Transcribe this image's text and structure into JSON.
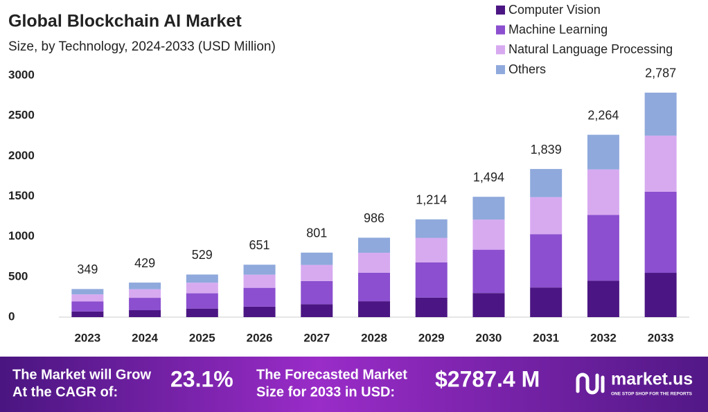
{
  "chart_data": {
    "type": "stacked_bar",
    "title": "Global Blockchain AI Market",
    "subtitle": "Size, by Technology, 2024-2033 (USD Million)",
    "categories": [
      "2023",
      "2024",
      "2025",
      "2026",
      "2027",
      "2028",
      "2029",
      "2030",
      "2031",
      "2032",
      "2033"
    ],
    "series": [
      {
        "name": "Computer Vision",
        "color": "#4b1683",
        "values": [
          70,
          86,
          106,
          130,
          160,
          197,
          243,
          299,
          368,
          453,
          550
        ]
      },
      {
        "name": "Machine Learning",
        "color": "#8b4fcf",
        "values": [
          126,
          154,
          190,
          234,
          288,
          355,
          437,
          538,
          662,
          815,
          1006
        ]
      },
      {
        "name": "Natural Language Processing",
        "color": "#d7aaf0",
        "values": [
          87,
          107,
          132,
          163,
          200,
          247,
          304,
          374,
          460,
          566,
          697
        ]
      },
      {
        "name": "Others",
        "color": "#8fa9dc",
        "values": [
          66,
          82,
          101,
          124,
          153,
          187,
          230,
          283,
          349,
          430,
          534
        ]
      }
    ],
    "totals": [
      349,
      429,
      529,
      651,
      801,
      986,
      1214,
      1494,
      1839,
      2264,
      2787
    ],
    "total_labels": [
      "349",
      "429",
      "529",
      "651",
      "801",
      "986",
      "1,214",
      "1,494",
      "1,839",
      "2,264",
      "2,787"
    ],
    "ylim": [
      0,
      3000
    ],
    "yticks": [
      0,
      500,
      1000,
      1500,
      2000,
      2500,
      3000
    ],
    "grid": false,
    "legend": "top-right"
  },
  "footer": {
    "cagr_text": [
      "The Market will Grow",
      "At the CAGR of:"
    ],
    "cagr_value": "23.1%",
    "forecast_text": [
      "The Forecasted Market",
      "Size for 2033 in USD:"
    ],
    "forecast_value": "$2787.4 M",
    "brand": "market.us",
    "tagline": "ONE STOP SHOP FOR THE REPORTS"
  }
}
